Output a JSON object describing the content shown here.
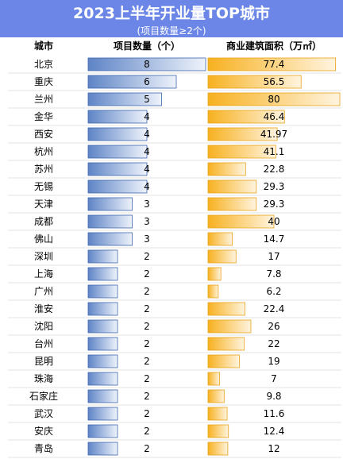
{
  "title": "2023上半年开业量TOP城市",
  "subtitle": "(项目数量≥2个)",
  "colors": {
    "header_bg": "#6b86e6",
    "projects_bar_dark": "#5e84c6",
    "projects_bar_light": "#eef3fb",
    "area_bar_dark": "#f7b120",
    "area_bar_light": "#fff4df"
  },
  "chart_data": {
    "type": "table",
    "columns": [
      "城市",
      "项目数量（个）",
      "商业建筑面积（万㎡）"
    ],
    "rows": [
      {
        "city": "北京",
        "projects": 8,
        "area": "77.4"
      },
      {
        "city": "重庆",
        "projects": 6,
        "area": "56.5"
      },
      {
        "city": "兰州",
        "projects": 5,
        "area": "80"
      },
      {
        "city": "金华",
        "projects": 4,
        "area": "46.4"
      },
      {
        "city": "西安",
        "projects": 4,
        "area": "41.97"
      },
      {
        "city": "杭州",
        "projects": 4,
        "area": "41.1"
      },
      {
        "city": "苏州",
        "projects": 4,
        "area": "22.8"
      },
      {
        "city": "无锡",
        "projects": 4,
        "area": "29.3"
      },
      {
        "city": "天津",
        "projects": 3,
        "area": "29.3"
      },
      {
        "city": "成都",
        "projects": 3,
        "area": "40"
      },
      {
        "city": "佛山",
        "projects": 3,
        "area": "14.7"
      },
      {
        "city": "深圳",
        "projects": 2,
        "area": "17"
      },
      {
        "city": "上海",
        "projects": 2,
        "area": "7.8"
      },
      {
        "city": "广州",
        "projects": 2,
        "area": "6.2"
      },
      {
        "city": "淮安",
        "projects": 2,
        "area": "22.4"
      },
      {
        "city": "沈阳",
        "projects": 2,
        "area": "26"
      },
      {
        "city": "台州",
        "projects": 2,
        "area": "22"
      },
      {
        "city": "昆明",
        "projects": 2,
        "area": "19"
      },
      {
        "city": "珠海",
        "projects": 2,
        "area": "7"
      },
      {
        "city": "石家庄",
        "projects": 2,
        "area": "9.8"
      },
      {
        "city": "武汉",
        "projects": 2,
        "area": "11.6"
      },
      {
        "city": "安庆",
        "projects": 2,
        "area": "12.4"
      },
      {
        "city": "青岛",
        "projects": 2,
        "area": "12"
      }
    ],
    "projects_max": 8,
    "area_max": 80
  }
}
